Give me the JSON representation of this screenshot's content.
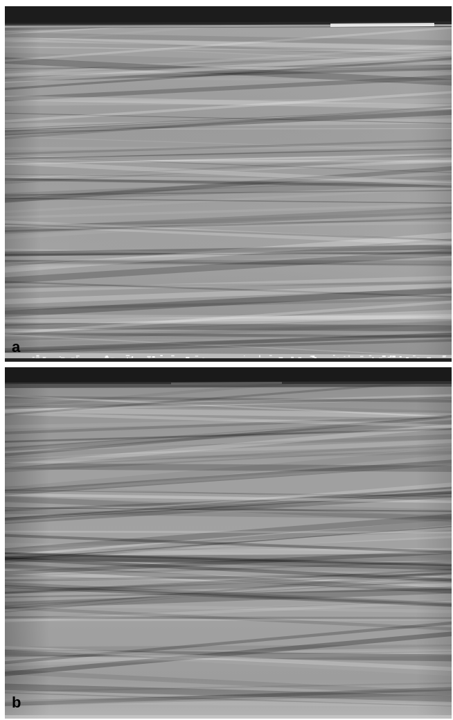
{
  "panels": [
    {
      "label": "a"
    },
    {
      "label": "b"
    }
  ],
  "colors": {
    "background": "#ffffff",
    "frame_dark": "#1b1b1b",
    "stripe_base": "#9a9a9a",
    "edge_highlight": "#f4f4f4",
    "label": "#000000"
  }
}
